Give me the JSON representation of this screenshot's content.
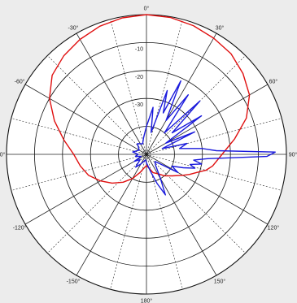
{
  "chart_data": {
    "type": "polar",
    "title": "",
    "radial_axis": {
      "unit": "dB",
      "tick_values": [
        -10,
        -20,
        -30
      ],
      "tick_labels": [
        "-10",
        "-20",
        "-30"
      ],
      "range": [
        -50,
        0
      ],
      "ring_values": [
        0,
        -10,
        -20,
        -30,
        -40
      ],
      "spoke_step_deg": 15
    },
    "angular_axis": {
      "zero_direction": "top",
      "direction": "clockwise",
      "tick_angles": [
        0,
        30,
        60,
        90,
        120,
        150,
        180,
        -150,
        -120,
        -90,
        -60,
        -30
      ],
      "tick_labels": [
        "0°",
        "30°",
        "60°",
        "90°",
        "120°",
        "150°",
        "180°",
        "-150°",
        "-120°",
        "-90°",
        "-60°",
        "-30°"
      ]
    },
    "series": [
      {
        "color": "#e01010",
        "points": [
          [
            0,
            0
          ],
          [
            10,
            -0.3
          ],
          [
            20,
            -1
          ],
          [
            30,
            -2
          ],
          [
            40,
            -3
          ],
          [
            50,
            -5
          ],
          [
            60,
            -7.5
          ],
          [
            70,
            -12
          ],
          [
            80,
            -18
          ],
          [
            90,
            -23
          ],
          [
            100,
            -26
          ],
          [
            105,
            -28
          ],
          [
            110,
            -31
          ],
          [
            115,
            -33
          ],
          [
            120,
            -35
          ],
          [
            130,
            -38
          ],
          [
            140,
            -40
          ],
          [
            150,
            -42
          ],
          [
            160,
            -43
          ],
          [
            170,
            -45
          ],
          [
            180,
            -46
          ],
          [
            -170,
            -45
          ],
          [
            -160,
            -43
          ],
          [
            -150,
            -40
          ],
          [
            -140,
            -37
          ],
          [
            -130,
            -34
          ],
          [
            -120,
            -31
          ],
          [
            -110,
            -28
          ],
          [
            -100,
            -26
          ],
          [
            -90,
            -24
          ],
          [
            -80,
            -20
          ],
          [
            -70,
            -15
          ],
          [
            -60,
            -10
          ],
          [
            -50,
            -6
          ],
          [
            -40,
            -4
          ],
          [
            -30,
            -2.5
          ],
          [
            -20,
            -1.2
          ],
          [
            -10,
            -0.4
          ],
          [
            0,
            0
          ]
        ]
      },
      {
        "color": "#1a1adc",
        "points": [
          [
            0,
            -40
          ],
          [
            8,
            -33
          ],
          [
            12,
            -42
          ],
          [
            18,
            -26
          ],
          [
            22,
            -34
          ],
          [
            25,
            -21
          ],
          [
            30,
            -36
          ],
          [
            35,
            -24
          ],
          [
            40,
            -40
          ],
          [
            45,
            -23
          ],
          [
            50,
            -38
          ],
          [
            55,
            -26
          ],
          [
            60,
            -42
          ],
          [
            65,
            -31
          ],
          [
            70,
            -44
          ],
          [
            75,
            -35
          ],
          [
            80,
            -38
          ],
          [
            84,
            -30
          ],
          [
            87,
            -25
          ],
          [
            89,
            -4
          ],
          [
            91,
            -7
          ],
          [
            94,
            -28
          ],
          [
            97,
            -33
          ],
          [
            100,
            -30
          ],
          [
            103,
            -34
          ],
          [
            106,
            -32
          ],
          [
            110,
            -36
          ],
          [
            115,
            -40
          ],
          [
            120,
            -37
          ],
          [
            125,
            -44
          ],
          [
            130,
            -46
          ],
          [
            140,
            -45
          ],
          [
            150,
            -40
          ],
          [
            155,
            -34
          ],
          [
            160,
            -39
          ],
          [
            165,
            -43
          ],
          [
            170,
            -45
          ],
          [
            180,
            -47
          ],
          [
            -170,
            -48
          ],
          [
            -150,
            -46
          ],
          [
            -140,
            -44
          ],
          [
            -130,
            -47
          ],
          [
            -120,
            -45
          ],
          [
            -110,
            -48
          ],
          [
            -100,
            -46
          ],
          [
            -90,
            -47
          ],
          [
            -80,
            -45
          ],
          [
            -60,
            -47
          ],
          [
            -40,
            -45
          ],
          [
            -20,
            -46
          ],
          [
            -10,
            -44
          ],
          [
            0,
            -40
          ]
        ]
      }
    ],
    "grid": true,
    "legend": "none"
  }
}
